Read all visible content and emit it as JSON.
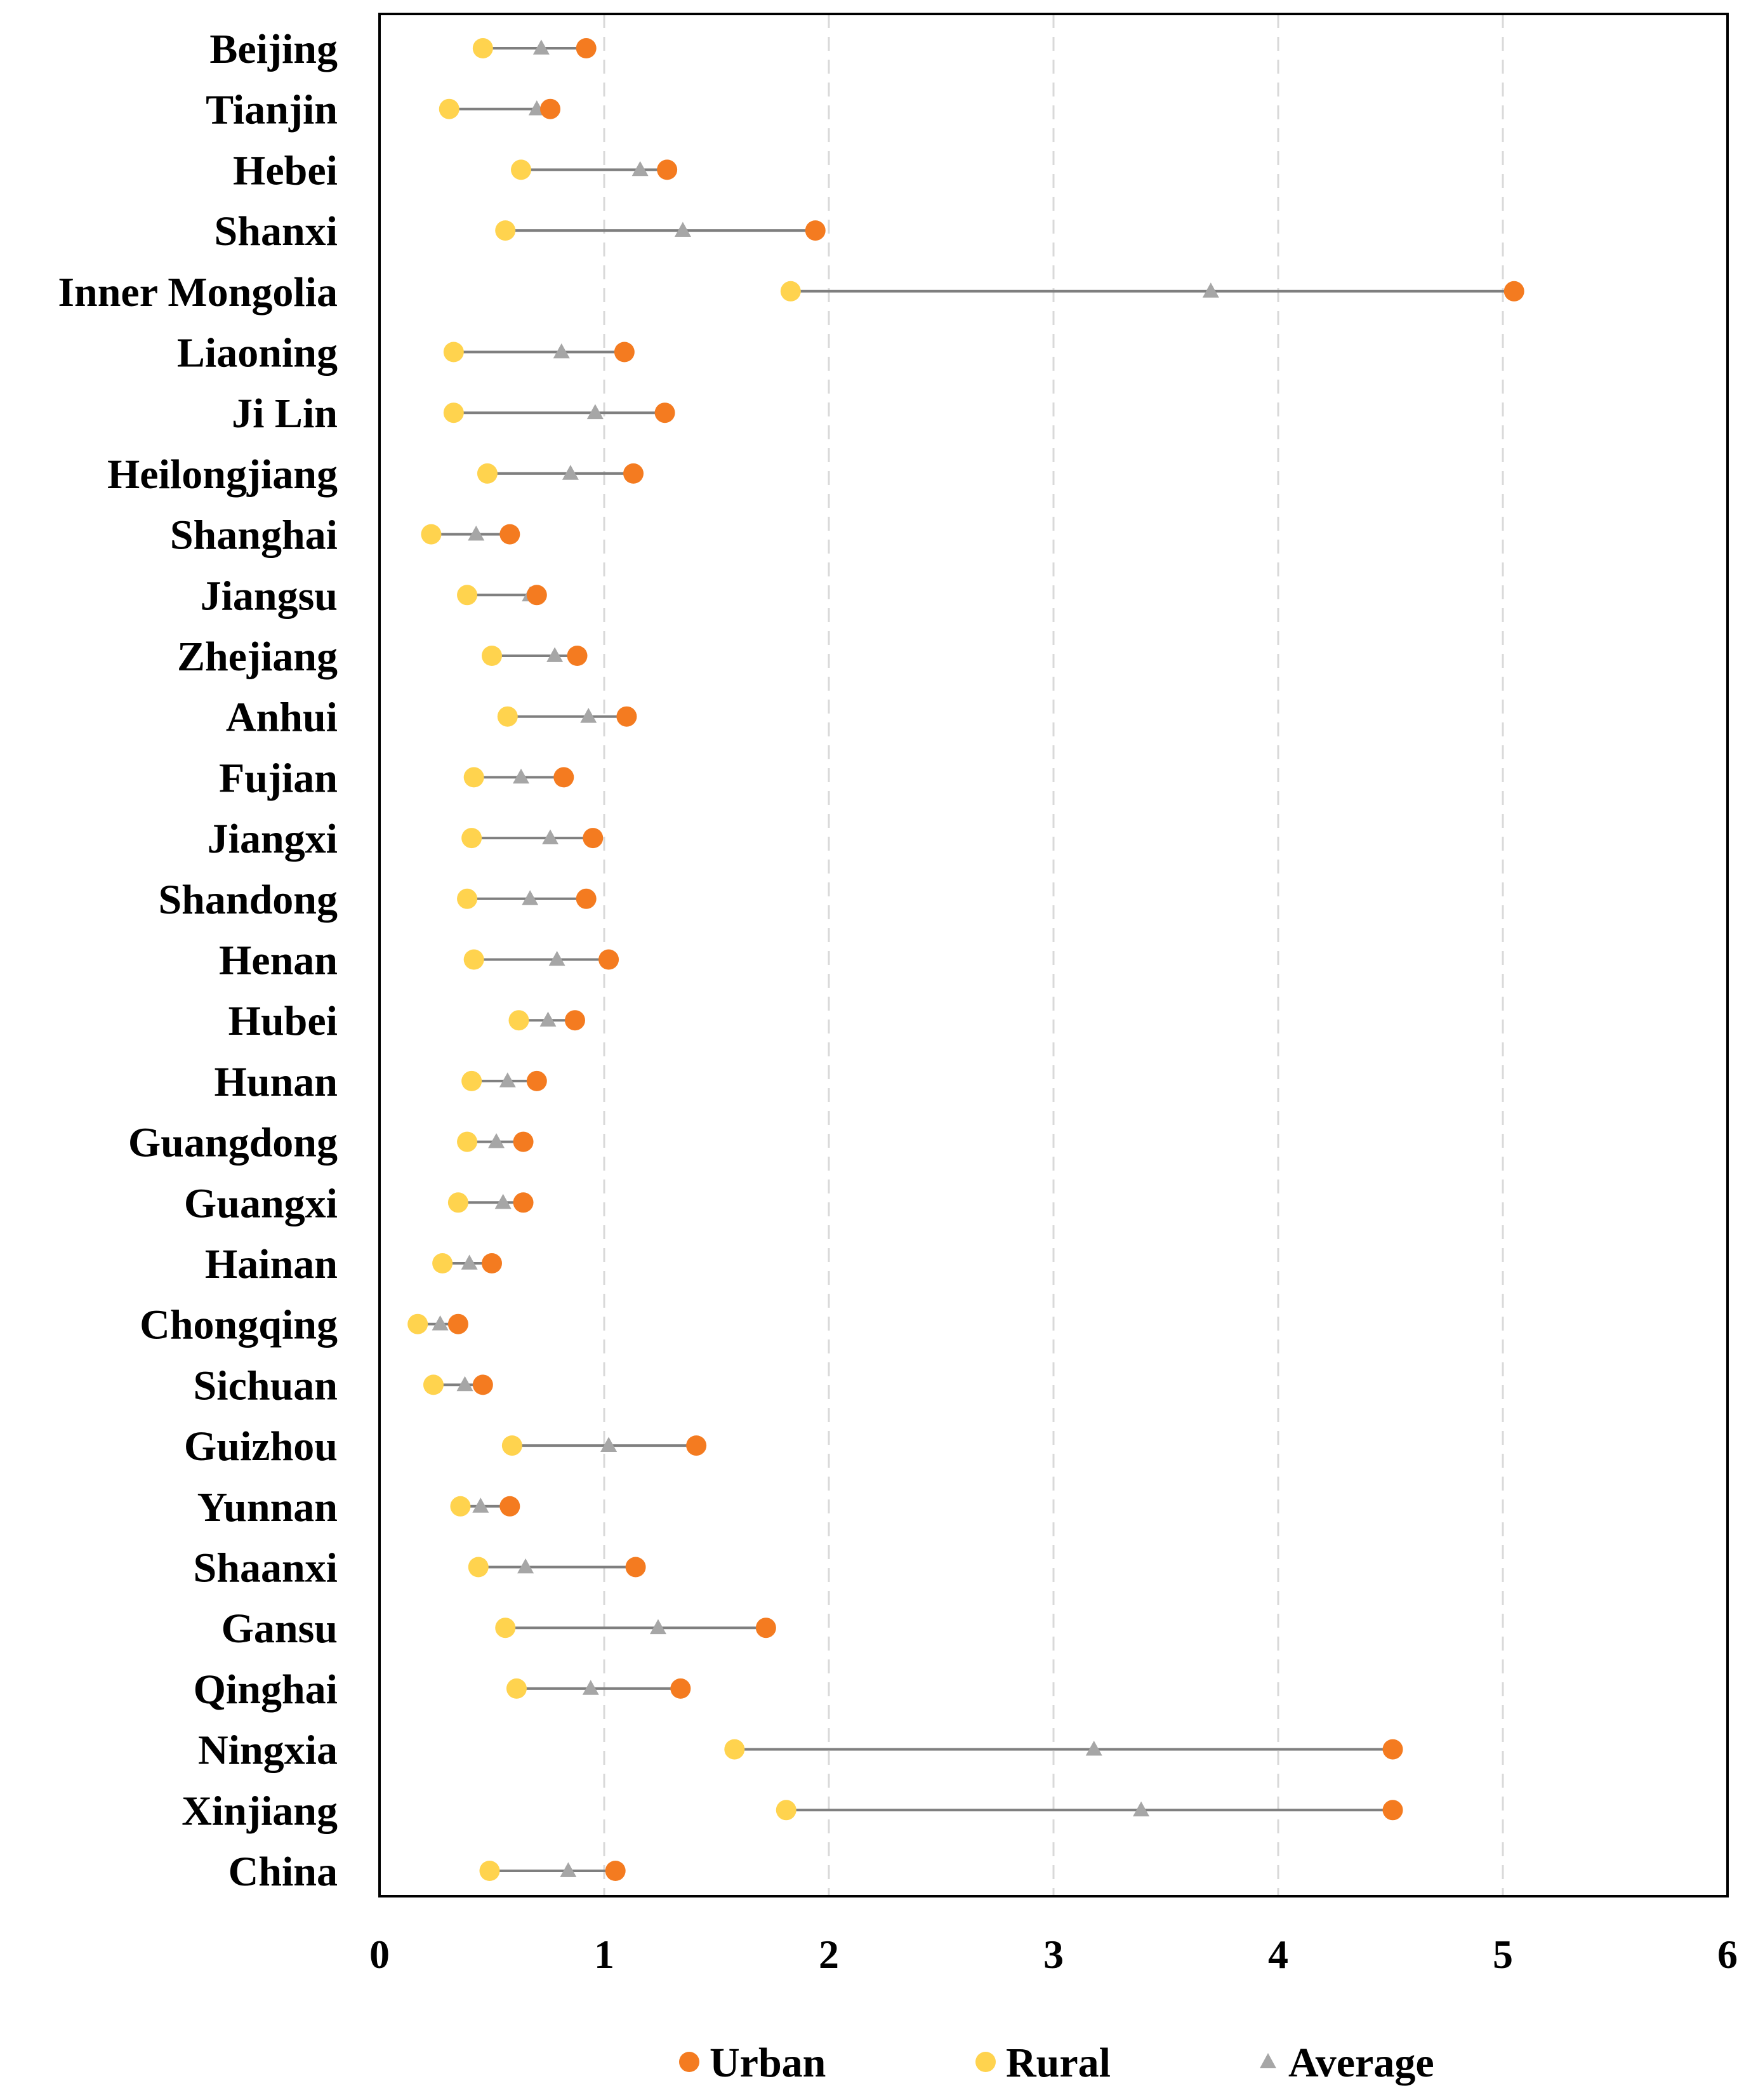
{
  "chart_data": {
    "type": "dot-range",
    "title": "",
    "xlabel": "",
    "ylabel": "",
    "xlim": [
      0,
      6
    ],
    "xticks": [
      "0",
      "1",
      "2",
      "3",
      "4",
      "5",
      "6"
    ],
    "grid": "vertical dashed",
    "legend_position": "bottom",
    "categories": [
      "Beijing",
      "Tianjin",
      "Hebei",
      "Shanxi",
      "Inner Mongolia",
      "Liaoning",
      "Ji Lin",
      "Heilongjiang",
      "Shanghai",
      "Jiangsu",
      "Zhejiang",
      "Anhui",
      "Fujian",
      "Jiangxi",
      "Shandong",
      "Henan",
      "Hubei",
      "Hunan",
      "Guangdong",
      "Guangxi",
      "Hainan",
      "Chongqing",
      "Sichuan",
      "Guizhou",
      "Yunnan",
      "Shaanxi",
      "Gansu",
      "Qinghai",
      "Ningxia",
      "Xinjiang",
      "China"
    ],
    "series": [
      {
        "name": "Urban",
        "color": "#F47B20",
        "marker": "circle",
        "values": [
          0.92,
          0.76,
          1.28,
          1.94,
          5.05,
          1.09,
          1.27,
          1.13,
          0.58,
          0.7,
          0.88,
          1.1,
          0.82,
          0.95,
          0.92,
          1.02,
          0.87,
          0.7,
          0.64,
          0.64,
          0.5,
          0.35,
          0.46,
          1.41,
          0.58,
          1.14,
          1.72,
          1.34,
          4.51,
          4.51,
          1.05
        ]
      },
      {
        "name": "Rural",
        "color": "#FFD34E",
        "marker": "circle",
        "values": [
          0.46,
          0.31,
          0.63,
          0.56,
          1.83,
          0.33,
          0.33,
          0.48,
          0.23,
          0.39,
          0.5,
          0.57,
          0.42,
          0.41,
          0.39,
          0.42,
          0.62,
          0.41,
          0.39,
          0.35,
          0.28,
          0.17,
          0.24,
          0.59,
          0.36,
          0.44,
          0.56,
          0.61,
          1.58,
          1.81,
          0.49
        ]
      },
      {
        "name": "Average",
        "color": "#A6A6A6",
        "marker": "triangle",
        "values": [
          0.72,
          0.7,
          1.16,
          1.35,
          3.7,
          0.81,
          0.96,
          0.85,
          0.43,
          0.67,
          0.78,
          0.93,
          0.63,
          0.76,
          0.67,
          0.79,
          0.75,
          0.57,
          0.52,
          0.55,
          0.4,
          0.27,
          0.38,
          1.02,
          0.45,
          0.65,
          1.24,
          0.94,
          3.18,
          3.39,
          0.84
        ]
      }
    ]
  }
}
